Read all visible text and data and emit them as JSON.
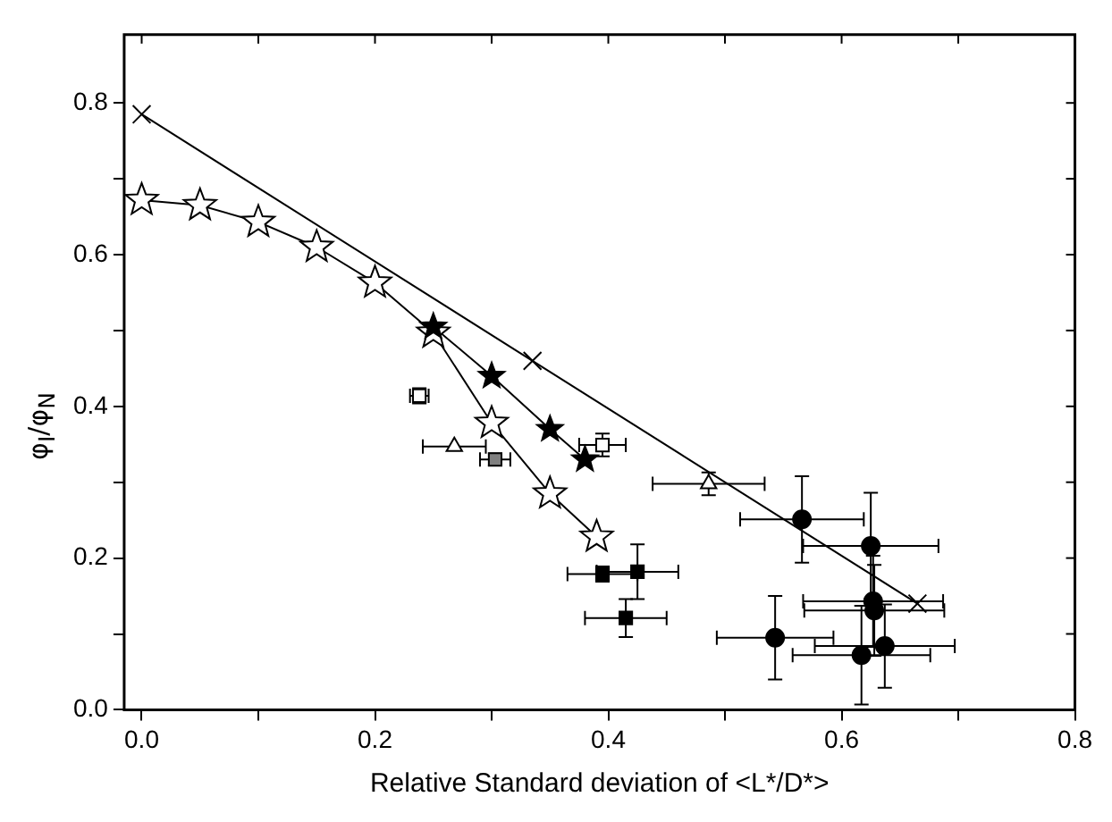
{
  "chart_data": {
    "type": "scatter",
    "xlabel": "Relative Standard deviation of <L*/D*>",
    "ylabel": "φ$_{I}$/φ$_{N}$",
    "xlim": [
      -0.015,
      0.8
    ],
    "ylim": [
      0,
      0.89
    ],
    "xticks": [
      {
        "value": 0,
        "label": "0.0"
      },
      {
        "value": 0.1,
        "label": null
      },
      {
        "value": 0.2,
        "label": "0.2"
      },
      {
        "value": 0.3,
        "label": null
      },
      {
        "value": 0.4,
        "label": "0.4"
      },
      {
        "value": 0.5,
        "label": null
      },
      {
        "value": 0.6,
        "label": "0.6"
      },
      {
        "value": 0.7,
        "label": null
      },
      {
        "value": 0.8,
        "label": "0.8"
      }
    ],
    "yticks": [
      {
        "value": 0,
        "label": "0.0"
      },
      {
        "value": 0.1,
        "label": null
      },
      {
        "value": 0.2,
        "label": "0.2"
      },
      {
        "value": 0.3,
        "label": null
      },
      {
        "value": 0.4,
        "label": "0.4"
      },
      {
        "value": 0.5,
        "label": null
      },
      {
        "value": 0.6,
        "label": "0.6"
      },
      {
        "value": 0.7,
        "label": null
      },
      {
        "value": 0.8,
        "label": "0.8"
      }
    ],
    "grid": false,
    "legend": false,
    "series": [
      {
        "type": "line",
        "marker": "cross",
        "color": "#000000",
        "x": [
          0,
          0.335,
          0.665
        ],
        "values": [
          0.785,
          0.46,
          0.14
        ]
      },
      {
        "type": "line",
        "marker": "star",
        "color": "#ffffff",
        "x": [
          0,
          0.05,
          0.1,
          0.15,
          0.2,
          0.25,
          0.3,
          0.35,
          0.39
        ],
        "values": [
          0.672,
          0.665,
          0.643,
          0.61,
          0.563,
          0.497,
          0.378,
          0.285,
          0.228
        ]
      },
      {
        "type": "line",
        "marker": "star",
        "color": "#000000",
        "x": [
          0.25,
          0.3,
          0.35,
          0.38
        ],
        "values": [
          0.505,
          0.44,
          0.37,
          0.33
        ]
      },
      {
        "type": "scatter",
        "marker": "square",
        "color": "#ffffff",
        "x": [
          0.238,
          0.395
        ],
        "values": [
          0.414,
          0.349
        ],
        "errors": [
          0.01,
          0.015
        ],
        "xerrors": [
          0.008,
          0.02
        ]
      },
      {
        "type": "scatter",
        "marker": "square",
        "color": "#808080",
        "x": [
          0.303
        ],
        "values": [
          0.33
        ],
        "errors": [
          0.008
        ],
        "xerrors": [
          0.013
        ]
      },
      {
        "type": "scatter",
        "marker": "triangle",
        "color": "#ffffff",
        "x": [
          0.268,
          0.486
        ],
        "values": [
          0.347,
          0.298
        ],
        "errors": [
          null,
          0.015
        ],
        "xerrors": [
          0.027,
          0.048
        ]
      },
      {
        "type": "scatter",
        "marker": "square",
        "color": "#000000",
        "x": [
          0.395,
          0.425,
          0.415
        ],
        "values": [
          0.179,
          0.182,
          0.121
        ],
        "errors": [
          0.01,
          0.036,
          0.025
        ],
        "xerrors": [
          0.03,
          0.035,
          0.035
        ]
      },
      {
        "type": "scatter",
        "marker": "circle",
        "color": "#000000",
        "x": [
          0.566,
          0.625,
          0.627,
          0.628,
          0.543,
          0.617,
          0.637
        ],
        "values": [
          0.251,
          0.216,
          0.143,
          0.131,
          0.095,
          0.072,
          0.084
        ],
        "errors": [
          0.057,
          0.07,
          0.06,
          0.06,
          0.055,
          0.065,
          0.055
        ],
        "xerrors": [
          0.053,
          0.058,
          0.06,
          0.06,
          0.05,
          0.059,
          0.06
        ]
      }
    ]
  }
}
